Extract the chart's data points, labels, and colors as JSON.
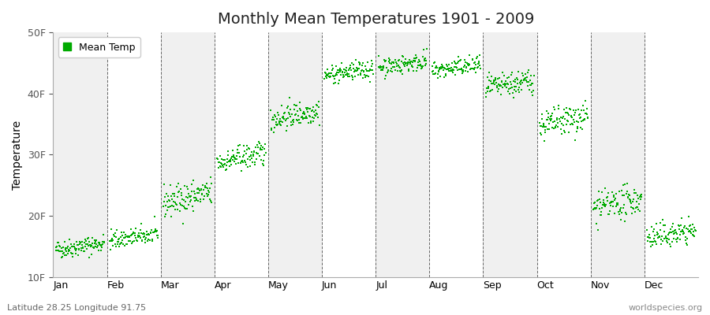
{
  "title": "Monthly Mean Temperatures 1901 - 2009",
  "ylabel": "Temperature",
  "subtitle_left": "Latitude 28.25 Longitude 91.75",
  "subtitle_right": "worldspecies.org",
  "legend_label": "Mean Temp",
  "yticks": [
    10,
    20,
    30,
    40,
    50
  ],
  "ytick_labels": [
    "10F",
    "20F",
    "30F",
    "40F",
    "50F"
  ],
  "ylim": [
    10,
    50
  ],
  "months": [
    "Jan",
    "Feb",
    "Mar",
    "Apr",
    "May",
    "Jun",
    "Jul",
    "Aug",
    "Sep",
    "Oct",
    "Nov",
    "Dec"
  ],
  "monthly_mean_temps": [
    15.0,
    16.5,
    23.0,
    29.5,
    36.5,
    43.5,
    44.8,
    44.2,
    41.5,
    35.5,
    22.0,
    17.0
  ],
  "monthly_std": [
    1.5,
    1.5,
    2.5,
    2.0,
    2.0,
    1.5,
    1.5,
    1.5,
    2.0,
    2.5,
    2.5,
    2.0
  ],
  "monthly_trend": [
    0.01,
    0.01,
    0.015,
    0.015,
    0.015,
    0.01,
    0.01,
    0.01,
    0.012,
    0.015,
    0.015,
    0.012
  ],
  "n_years": 109,
  "background_color": "#ffffff",
  "band_color_light": "#f0f0f0",
  "band_color_dark": "#e0e0e0",
  "marker_color": "#00aa00",
  "marker_size": 3,
  "dashed_line_color": "#666666",
  "title_fontsize": 14,
  "axis_label_fontsize": 10,
  "tick_fontsize": 9,
  "subtitle_fontsize": 8
}
